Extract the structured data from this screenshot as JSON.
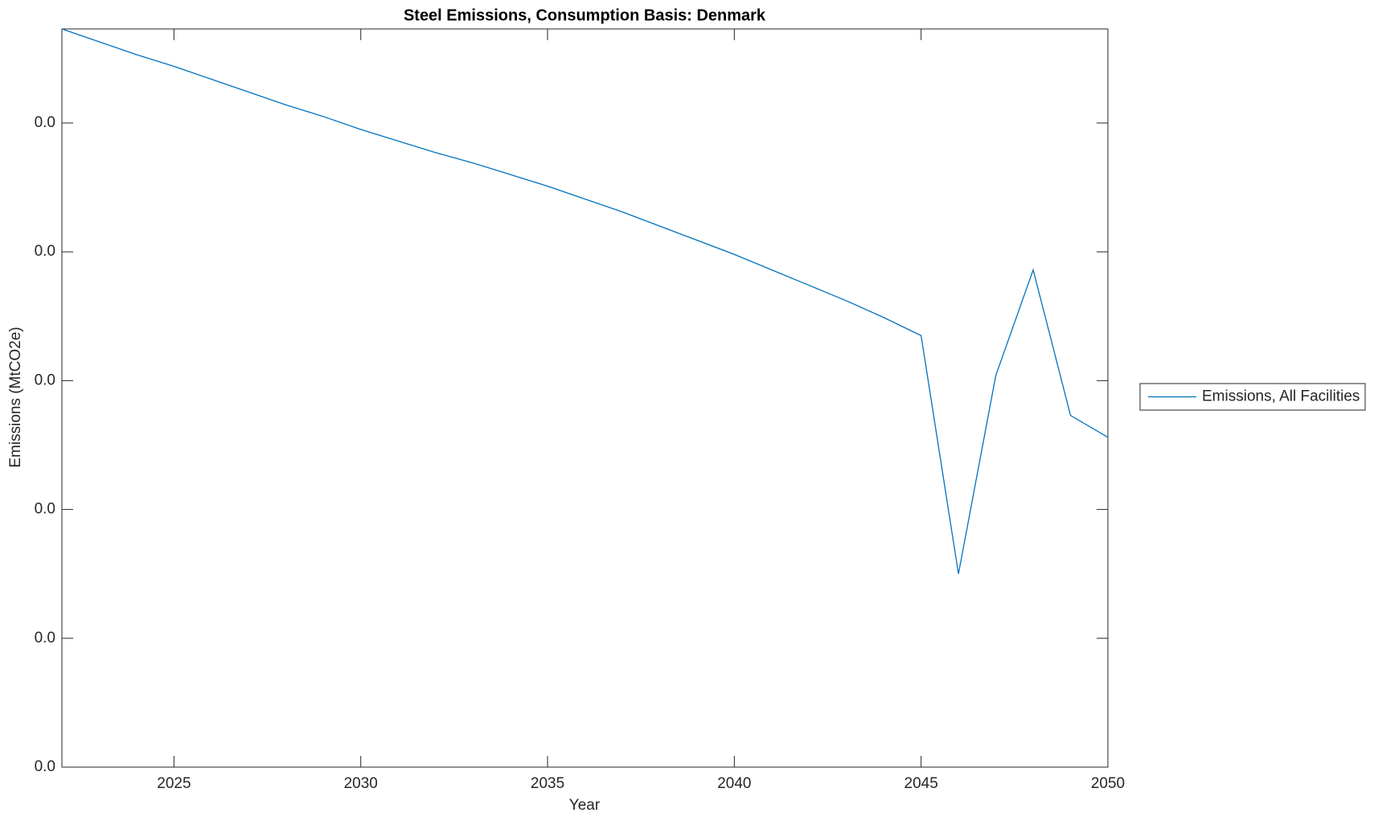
{
  "chart_data": {
    "type": "line",
    "title": "Steel Emissions, Consumption Basis: Denmark",
    "x_label": "Year",
    "y_label": "Emissions (MtCO2e)",
    "x": [
      2022,
      2023,
      2024,
      2025,
      2026,
      2027,
      2028,
      2029,
      2030,
      2031,
      2032,
      2033,
      2034,
      2035,
      2036,
      2037,
      2038,
      2039,
      2040,
      2041,
      2042,
      2043,
      2044,
      2045,
      2046,
      2047,
      2048,
      2049,
      2050
    ],
    "series": [
      {
        "name": "Emissions, All Facilities",
        "color": "#0072bd",
        "values": [
          0.0573,
          0.0563,
          0.0553,
          0.0544,
          0.0534,
          0.0524,
          0.0514,
          0.0505,
          0.0495,
          0.0486,
          0.0477,
          0.0469,
          0.046,
          0.0451,
          0.0441,
          0.0431,
          0.042,
          0.0409,
          0.0398,
          0.0386,
          0.0374,
          0.0362,
          0.0349,
          0.0335,
          0.015,
          0.0304,
          0.0386,
          0.0273,
          0.0256
        ]
      }
    ],
    "xlim": [
      2022,
      2050
    ],
    "xticks": [
      2025,
      2030,
      2035,
      2040,
      2045,
      2050
    ],
    "ylim": [
      0,
      0.0573
    ],
    "yticks": [
      {
        "value": 0,
        "label": "0.0"
      },
      {
        "value": 0.01,
        "label": "0.0"
      },
      {
        "value": 0.02,
        "label": "0.0"
      },
      {
        "value": 0.03,
        "label": "0.0"
      },
      {
        "value": 0.04,
        "label": "0.0"
      },
      {
        "value": 0.05,
        "label": "0.0"
      }
    ],
    "legend": "outside-right"
  }
}
